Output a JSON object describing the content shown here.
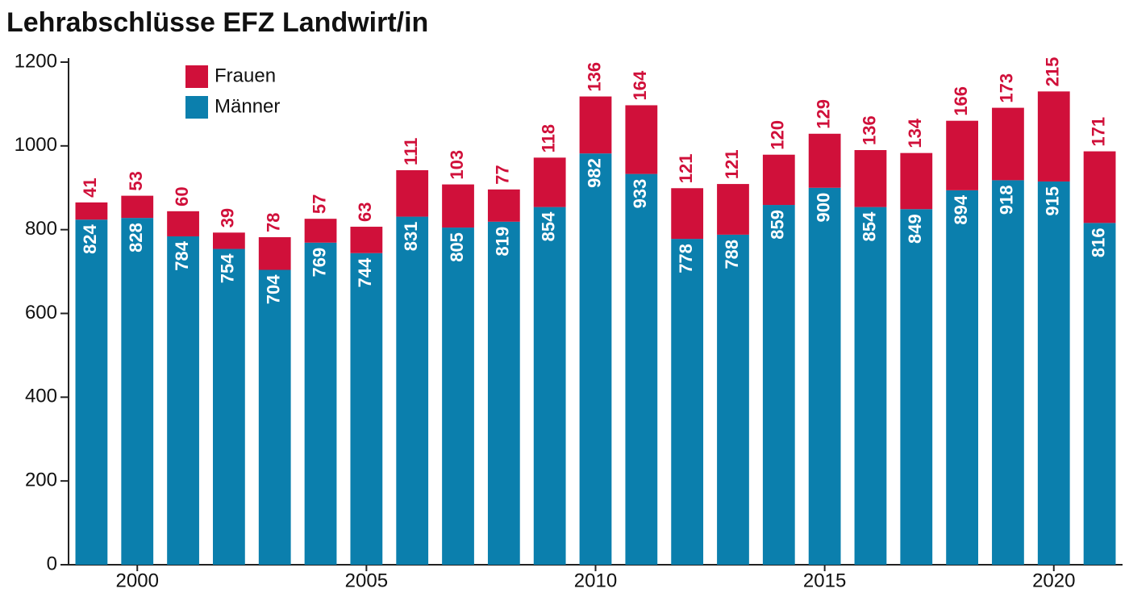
{
  "chart_data": {
    "type": "stacked_bar",
    "title": "Lehrabschlüsse EFZ Landwirt/in",
    "categories": [
      null,
      "2000",
      null,
      null,
      null,
      null,
      "2005",
      null,
      null,
      null,
      null,
      "2010",
      null,
      null,
      null,
      null,
      "2015",
      null,
      null,
      null,
      null,
      "2020",
      null
    ],
    "series": [
      {
        "name": "Männer",
        "color": "#0b7fad",
        "values": [
          824,
          828,
          784,
          754,
          704,
          769,
          744,
          831,
          805,
          819,
          854,
          982,
          933,
          778,
          788,
          859,
          900,
          854,
          849,
          894,
          918,
          915,
          816
        ]
      },
      {
        "name": "Frauen",
        "color": "#d0103a",
        "values": [
          41,
          53,
          60,
          39,
          78,
          57,
          63,
          111,
          103,
          77,
          118,
          136,
          164,
          121,
          121,
          120,
          129,
          136,
          134,
          166,
          173,
          215,
          171
        ]
      }
    ],
    "ylim": [
      0,
      1200
    ],
    "yticks": [
      0,
      200,
      400,
      600,
      800,
      1000,
      1200
    ],
    "legend": "upper left"
  }
}
